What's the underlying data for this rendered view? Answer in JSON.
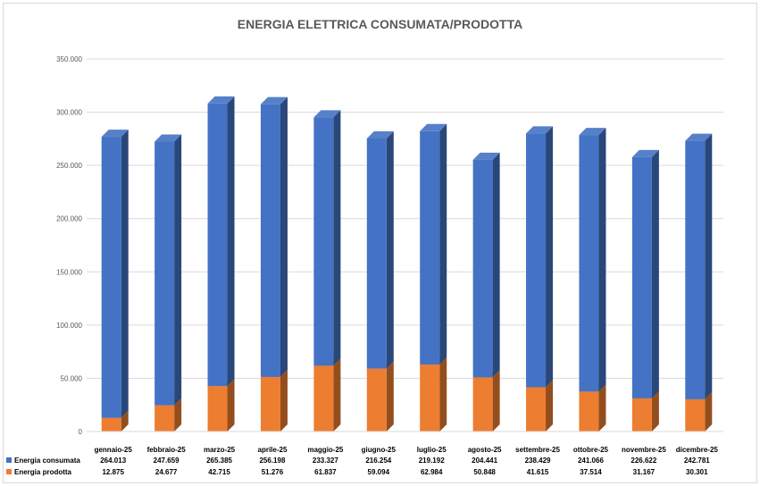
{
  "chart_data": {
    "type": "bar",
    "stacked": true,
    "title": "ENERGIA ELETTRICA CONSUMATA/PRODOTTA",
    "categories": [
      "gennaio-25",
      "febbraio-25",
      "marzo-25",
      "aprile-25",
      "maggio-25",
      "giugno-25",
      "luglio-25",
      "agosto-25",
      "settembre-25",
      "ottobre-25",
      "novembre-25",
      "dicembre-25"
    ],
    "series": [
      {
        "name": "Energia prodotta",
        "color": "#ed7d31",
        "values": [
          12875,
          24677,
          42715,
          51276,
          61837,
          59094,
          62984,
          50848,
          41615,
          37514,
          31167,
          30301
        ],
        "labels": [
          "12.875",
          "24.677",
          "42.715",
          "51.276",
          "61.837",
          "59.094",
          "62.984",
          "50.848",
          "41.615",
          "37.514",
          "31.167",
          "30.301"
        ]
      },
      {
        "name": "Energia consumata",
        "color": "#4472c4",
        "values": [
          264013,
          247659,
          265385,
          256198,
          233327,
          216254,
          219192,
          204441,
          238429,
          241066,
          226622,
          242781
        ],
        "labels": [
          "264.013",
          "247.659",
          "265.385",
          "256.198",
          "233.327",
          "216.254",
          "219.192",
          "204.441",
          "238.429",
          "241.066",
          "226.622",
          "242.781"
        ]
      }
    ],
    "ylim": [
      0,
      350000
    ],
    "yticks": [
      0,
      50000,
      100000,
      150000,
      200000,
      250000,
      300000,
      350000
    ],
    "ytick_labels": [
      "0",
      "50.000",
      "100.000",
      "150.000",
      "200.000",
      "250.000",
      "300.000",
      "350.000"
    ],
    "grid": true,
    "legend": "data-table-below",
    "data_table": true,
    "bar_style": "3d"
  }
}
